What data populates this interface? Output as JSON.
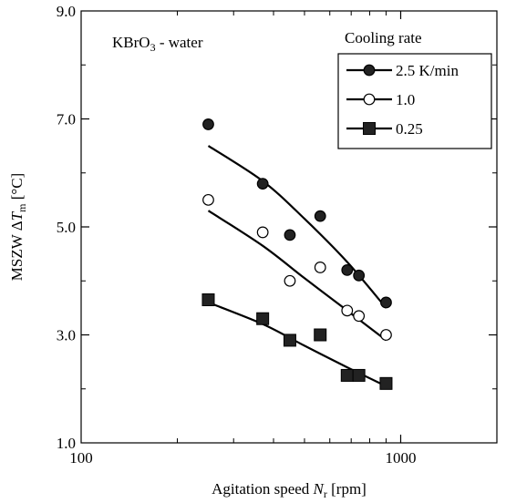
{
  "chart_data": {
    "type": "scatter",
    "x_scale": "log",
    "xlim": [
      100,
      2000
    ],
    "ylim": [
      1.0,
      9.0
    ],
    "x_ticks": [
      {
        "value": 100,
        "label": "100"
      },
      {
        "value": 1000,
        "label": "1000"
      }
    ],
    "y_ticks": [
      {
        "value": 1.0,
        "label": "1.0"
      },
      {
        "value": 3.0,
        "label": "3.0"
      },
      {
        "value": 5.0,
        "label": "5.0"
      },
      {
        "value": 7.0,
        "label": "7.0"
      },
      {
        "value": 9.0,
        "label": "9.0"
      }
    ],
    "y_minor_ticks": [
      2.0,
      4.0,
      6.0,
      8.0
    ],
    "xlabel": {
      "prefix": "Agitation speed ",
      "var": "N",
      "sub": "r",
      "suffix": "  [rpm]"
    },
    "ylabel": {
      "prefix": "MSZW Δ",
      "var": "T",
      "sub": "m",
      "suffix": "  [°C]"
    },
    "annotation": {
      "text": "KBrO",
      "sub": "3",
      "suffix": " - water"
    },
    "legend": {
      "title": "Cooling rate",
      "placement": "top-right"
    },
    "series": [
      {
        "name": "2.5 K/min",
        "marker": "filled-circle",
        "x": [
          250,
          370,
          450,
          560,
          680,
          740,
          900
        ],
        "y": [
          6.9,
          5.8,
          4.85,
          5.2,
          4.2,
          4.1,
          3.6
        ],
        "fit": {
          "x": [
            250,
            370,
            500,
            680,
            900
          ],
          "y": [
            6.5,
            5.85,
            5.15,
            4.35,
            3.5
          ]
        }
      },
      {
        "name": "1.0",
        "marker": "open-circle",
        "x": [
          250,
          370,
          450,
          560,
          680,
          740,
          900
        ],
        "y": [
          5.5,
          4.9,
          4.0,
          4.25,
          3.45,
          3.35,
          3.0
        ],
        "fit": {
          "x": [
            250,
            370,
            500,
            680,
            900
          ],
          "y": [
            5.3,
            4.65,
            4.05,
            3.45,
            2.9
          ]
        }
      },
      {
        "name": "0.25",
        "marker": "filled-square",
        "x": [
          250,
          370,
          450,
          560,
          680,
          740,
          900
        ],
        "y": [
          3.65,
          3.3,
          2.9,
          3.0,
          2.25,
          2.25,
          2.1
        ],
        "fit": {
          "x": [
            250,
            370,
            500,
            680,
            900
          ],
          "y": [
            3.6,
            3.2,
            2.8,
            2.4,
            2.05
          ]
        }
      }
    ]
  }
}
